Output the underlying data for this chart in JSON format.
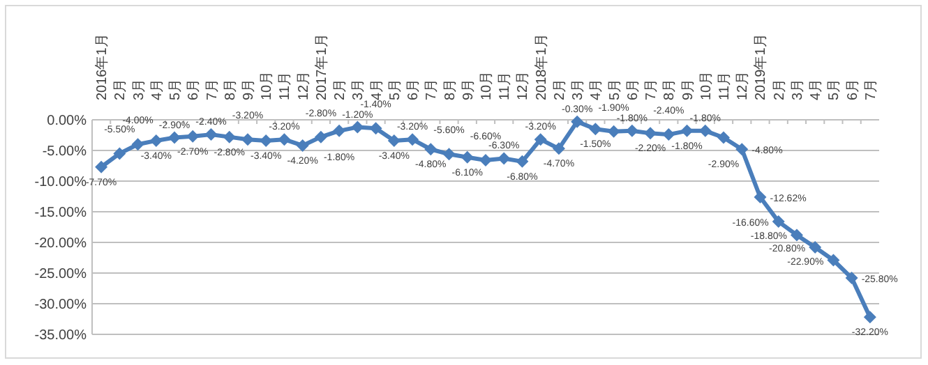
{
  "chart_data": {
    "type": "line",
    "categories": [
      "2016年1月",
      "2月",
      "3月",
      "4月",
      "5月",
      "6月",
      "7月",
      "8月",
      "9月",
      "10月",
      "11月",
      "12月",
      "2017年1月",
      "2月",
      "3月",
      "4月",
      "5月",
      "6月",
      "7月",
      "8月",
      "9月",
      "10月",
      "11月",
      "12月",
      "2018年1月",
      "2月",
      "3月",
      "4月",
      "5月",
      "6月",
      "7月",
      "8月",
      "9月",
      "10月",
      "11月",
      "12月",
      "2019年1月",
      "2月",
      "3月",
      "4月",
      "5月",
      "6月",
      "7月"
    ],
    "series": [
      {
        "color": "#4a7ebb",
        "values": [
          -7.7,
          -5.5,
          -4.0,
          -3.4,
          -2.9,
          -2.7,
          -2.4,
          -2.8,
          -3.2,
          -3.4,
          -3.2,
          -4.2,
          -2.8,
          -1.8,
          -1.2,
          -1.4,
          -3.4,
          -3.2,
          -4.8,
          -5.6,
          -6.1,
          -6.6,
          -6.3,
          -6.8,
          -3.2,
          -4.7,
          -0.3,
          -1.5,
          -1.9,
          -1.8,
          -2.2,
          -2.4,
          -1.8,
          -1.8,
          -2.9,
          -4.8,
          -12.62,
          -16.6,
          -18.8,
          -20.8,
          -22.9,
          -25.8,
          -32.2
        ],
        "value_labels": [
          "-7.70%",
          "-5.50%",
          "-4.00%",
          "-3.40%",
          "-2.90%",
          "-2.70%",
          "-2.40%",
          "-2.80%",
          "-3.20%",
          "-3.40%",
          "-3.20%",
          "-4.20%",
          "-2.80%",
          "-1.80%",
          "-1.20%",
          "-1.40%",
          "-3.40%",
          "-3.20%",
          "-4.80%",
          "-5.60%",
          "-6.10%",
          "-6.60%",
          "-6.30%",
          "-6.80%",
          "-3.20%",
          "-4.70%",
          "-0.30%",
          "-1.50%",
          "-1.90%",
          "-1.80%",
          "-2.20%",
          "-2.40%",
          "-1.80%",
          "-1.80%",
          "-2.90%",
          "-4.80%",
          "-12.62%",
          "-16.60%",
          "-18.80%",
          "-20.80%",
          "-22.90%",
          "-25.80%",
          "-32.20%"
        ]
      }
    ],
    "ylim": [
      -35,
      0
    ],
    "yticks": [
      {
        "value": 0,
        "label": "0.00%"
      },
      {
        "value": -5,
        "label": "-5.00%"
      },
      {
        "value": -10,
        "label": "-10.00%"
      },
      {
        "value": -15,
        "label": "-15.00%"
      },
      {
        "value": -20,
        "label": "-20.00%"
      },
      {
        "value": -25,
        "label": "-25.00%"
      },
      {
        "value": -30,
        "label": "-30.00%"
      },
      {
        "value": -35,
        "label": "-35.00%"
      }
    ],
    "grid": "y",
    "marker": "diamond",
    "line_style": "solid"
  }
}
